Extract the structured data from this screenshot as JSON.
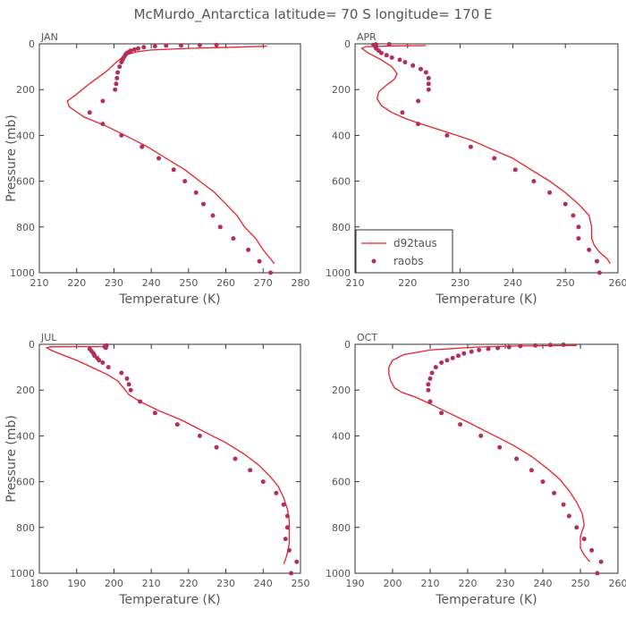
{
  "figure": {
    "title": "McMurdo_Antarctica  latitude= 70 S longitude= 170 E"
  },
  "colors": {
    "model_line": "#e8202a",
    "obs_marker": "#b0305a",
    "axis": "#333333",
    "text": "#555555"
  },
  "chart_data": [
    {
      "type": "line",
      "panel_label": "JAN",
      "xlabel": "Temperature (K)",
      "ylabel": "Pressure (mb)",
      "xlim": [
        210,
        280
      ],
      "ylim": [
        1000,
        0
      ],
      "xticks": [
        210,
        220,
        230,
        240,
        250,
        260,
        270,
        280
      ],
      "yticks": [
        0,
        200,
        400,
        600,
        800,
        1000
      ],
      "legend": null,
      "series": [
        {
          "name": "d92taus",
          "style": "line",
          "points": [
            [
              271,
              10
            ],
            [
              262,
              15
            ],
            [
              250,
              20
            ],
            [
              240,
              27
            ],
            [
              236,
              35
            ],
            [
              233,
              50
            ],
            [
              231,
              75
            ],
            [
              228,
              120
            ],
            [
              223,
              180
            ],
            [
              220,
              220
            ],
            [
              217.5,
              250
            ],
            [
              218,
              275
            ],
            [
              222,
              320
            ],
            [
              228,
              360
            ],
            [
              233,
              400
            ],
            [
              239,
              450
            ],
            [
              244,
              500
            ],
            [
              249,
              550
            ],
            [
              253,
              600
            ],
            [
              257,
              650
            ],
            [
              260,
              700
            ],
            [
              263,
              750
            ],
            [
              265,
              800
            ],
            [
              268,
              850
            ],
            [
              270,
              900
            ],
            [
              272,
              940
            ],
            [
              273,
              960
            ]
          ]
        },
        {
          "name": "raobs",
          "style": "markers",
          "points": [
            [
              257.5,
              5
            ],
            [
              253,
              6
            ],
            [
              248,
              7
            ],
            [
              244,
              8
            ],
            [
              241,
              10
            ],
            [
              238,
              15
            ],
            [
              236.5,
              20
            ],
            [
              235.5,
              25
            ],
            [
              234.5,
              30
            ],
            [
              234,
              35
            ],
            [
              233.5,
              40
            ],
            [
              233.2,
              45
            ],
            [
              233,
              50
            ],
            [
              232.6,
              60
            ],
            [
              232.3,
              70
            ],
            [
              232,
              80
            ],
            [
              231.5,
              100
            ],
            [
              231,
              125
            ],
            [
              230.8,
              150
            ],
            [
              230.6,
              175
            ],
            [
              230.3,
              200
            ],
            [
              227,
              250
            ],
            [
              223.5,
              300
            ],
            [
              227,
              350
            ],
            [
              232,
              400
            ],
            [
              237.5,
              450
            ],
            [
              242,
              500
            ],
            [
              246,
              550
            ],
            [
              249,
              600
            ],
            [
              252,
              650
            ],
            [
              254,
              700
            ],
            [
              256.5,
              750
            ],
            [
              258.5,
              800
            ],
            [
              262,
              850
            ],
            [
              266,
              900
            ],
            [
              269,
              950
            ],
            [
              272,
              1000
            ]
          ]
        }
      ]
    },
    {
      "type": "line",
      "panel_label": "APR",
      "xlabel": "Temperature (K)",
      "ylabel": "",
      "xlim": [
        210,
        260
      ],
      "ylim": [
        1000,
        0
      ],
      "xticks": [
        210,
        220,
        230,
        240,
        250,
        260
      ],
      "yticks": [
        0,
        200,
        400,
        600,
        800,
        1000
      ],
      "legend": {
        "placement": "bottom-left",
        "entries": [
          "d92taus",
          "raobs"
        ]
      },
      "series": [
        {
          "name": "d92taus",
          "style": "line",
          "points": [
            [
              223.5,
              8
            ],
            [
              218,
              9
            ],
            [
              212,
              12
            ],
            [
              211.3,
              20
            ],
            [
              212.5,
              40
            ],
            [
              215,
              70
            ],
            [
              217,
              100
            ],
            [
              218,
              130
            ],
            [
              217.5,
              155
            ],
            [
              216,
              180
            ],
            [
              214.5,
              210
            ],
            [
              214.2,
              240
            ],
            [
              215,
              270
            ],
            [
              217,
              300
            ],
            [
              220,
              330
            ],
            [
              224,
              360
            ],
            [
              228,
              390
            ],
            [
              232,
              420
            ],
            [
              236,
              460
            ],
            [
              240,
              500
            ],
            [
              243.5,
              550
            ],
            [
              247,
              600
            ],
            [
              250,
              650
            ],
            [
              252.5,
              700
            ],
            [
              254.5,
              750
            ],
            [
              255,
              800
            ],
            [
              255,
              850
            ],
            [
              255.5,
              880
            ],
            [
              256.5,
              910
            ],
            [
              258,
              940
            ],
            [
              258.5,
              960
            ]
          ]
        },
        {
          "name": "raobs",
          "style": "markers",
          "points": [
            [
              216.5,
              2
            ],
            [
              214,
              3
            ],
            [
              213.5,
              5
            ],
            [
              213.8,
              10
            ],
            [
              214,
              15
            ],
            [
              214,
              20
            ],
            [
              214.5,
              30
            ],
            [
              215,
              40
            ],
            [
              216,
              50
            ],
            [
              217,
              60
            ],
            [
              218.5,
              70
            ],
            [
              219.5,
              80
            ],
            [
              221,
              95
            ],
            [
              222.5,
              110
            ],
            [
              223.5,
              125
            ],
            [
              224,
              150
            ],
            [
              224,
              175
            ],
            [
              224,
              200
            ],
            [
              222,
              250
            ],
            [
              219,
              300
            ],
            [
              222,
              350
            ],
            [
              227.5,
              400
            ],
            [
              232,
              450
            ],
            [
              236.5,
              500
            ],
            [
              240.5,
              550
            ],
            [
              244,
              600
            ],
            [
              247,
              650
            ],
            [
              250,
              700
            ],
            [
              251.5,
              750
            ],
            [
              252.5,
              800
            ],
            [
              252.5,
              850
            ],
            [
              254.5,
              900
            ],
            [
              256,
              950
            ],
            [
              256.5,
              1000
            ]
          ]
        }
      ]
    },
    {
      "type": "line",
      "panel_label": "JUL",
      "xlabel": "Temperature (K)",
      "ylabel": "Pressure (mb)",
      "xlim": [
        180,
        250
      ],
      "ylim": [
        1000,
        0
      ],
      "xticks": [
        180,
        190,
        200,
        210,
        220,
        230,
        240,
        250
      ],
      "yticks": [
        0,
        200,
        400,
        600,
        800,
        1000
      ],
      "legend": null,
      "series": [
        {
          "name": "d92taus",
          "style": "line",
          "points": [
            [
              197,
              10
            ],
            [
              190,
              10
            ],
            [
              183,
              11
            ],
            [
              182,
              15
            ],
            [
              183,
              25
            ],
            [
              186,
              45
            ],
            [
              190,
              70
            ],
            [
              194,
              100
            ],
            [
              198,
              130
            ],
            [
              201,
              160
            ],
            [
              202.5,
              190
            ],
            [
              204,
              220
            ],
            [
              207,
              250
            ],
            [
              212,
              290
            ],
            [
              218,
              330
            ],
            [
              224,
              380
            ],
            [
              230,
              430
            ],
            [
              235,
              480
            ],
            [
              239,
              530
            ],
            [
              242,
              580
            ],
            [
              244,
              620
            ],
            [
              245.5,
              670
            ],
            [
              246.5,
              720
            ],
            [
              247,
              770
            ],
            [
              247,
              820
            ],
            [
              247,
              870
            ],
            [
              246.5,
              910
            ],
            [
              246,
              940
            ],
            [
              245.5,
              960
            ]
          ]
        },
        {
          "name": "raobs",
          "style": "markers",
          "points": [
            [
              198,
              5
            ],
            [
              197.5,
              10
            ],
            [
              197.8,
              15
            ],
            [
              193.5,
              20
            ],
            [
              194,
              30
            ],
            [
              194.5,
              40
            ],
            [
              194.8,
              50
            ],
            [
              195.5,
              60
            ],
            [
              196,
              70
            ],
            [
              197,
              80
            ],
            [
              198.5,
              100
            ],
            [
              202,
              125
            ],
            [
              203.5,
              150
            ],
            [
              204,
              175
            ],
            [
              204.5,
              200
            ],
            [
              207,
              250
            ],
            [
              211,
              300
            ],
            [
              217,
              350
            ],
            [
              223,
              400
            ],
            [
              227.5,
              450
            ],
            [
              232.5,
              500
            ],
            [
              236.5,
              550
            ],
            [
              240,
              600
            ],
            [
              243.5,
              650
            ],
            [
              245.5,
              700
            ],
            [
              246.5,
              750
            ],
            [
              246.5,
              800
            ],
            [
              246,
              850
            ],
            [
              247,
              900
            ],
            [
              249,
              950
            ],
            [
              247.5,
              1000
            ]
          ]
        }
      ]
    },
    {
      "type": "line",
      "panel_label": "OCT",
      "xlabel": "Temperature (K)",
      "ylabel": "",
      "xlim": [
        190,
        260
      ],
      "ylim": [
        1000,
        0
      ],
      "xticks": [
        190,
        200,
        210,
        220,
        230,
        240,
        250,
        260
      ],
      "yticks": [
        0,
        200,
        400,
        600,
        800,
        1000
      ],
      "legend": null,
      "series": [
        {
          "name": "d92taus",
          "style": "line",
          "points": [
            [
              249,
              5
            ],
            [
              242,
              6
            ],
            [
              232,
              8
            ],
            [
              222,
              12
            ],
            [
              210,
              25
            ],
            [
              203,
              45
            ],
            [
              200,
              70
            ],
            [
              199,
              100
            ],
            [
              199,
              130
            ],
            [
              199.5,
              160
            ],
            [
              200.5,
              190
            ],
            [
              202.5,
              210
            ],
            [
              206,
              230
            ],
            [
              210,
              260
            ],
            [
              215,
              300
            ],
            [
              220,
              340
            ],
            [
              226,
              390
            ],
            [
              232,
              440
            ],
            [
              237,
              490
            ],
            [
              241,
              540
            ],
            [
              244.5,
              590
            ],
            [
              247,
              640
            ],
            [
              249,
              690
            ],
            [
              250.5,
              740
            ],
            [
              251,
              790
            ],
            [
              250,
              840
            ],
            [
              250,
              890
            ],
            [
              251,
              920
            ],
            [
              252.5,
              950
            ]
          ]
        },
        {
          "name": "raobs",
          "style": "markers",
          "points": [
            [
              245.5,
              2
            ],
            [
              242,
              3
            ],
            [
              238,
              5
            ],
            [
              234,
              8
            ],
            [
              231,
              12
            ],
            [
              228,
              16
            ],
            [
              225.5,
              20
            ],
            [
              223,
              25
            ],
            [
              221,
              32
            ],
            [
              219,
              40
            ],
            [
              217.5,
              50
            ],
            [
              216,
              60
            ],
            [
              214.5,
              70
            ],
            [
              213,
              80
            ],
            [
              211.5,
              100
            ],
            [
              210.5,
              125
            ],
            [
              210,
              150
            ],
            [
              209.5,
              175
            ],
            [
              209.5,
              200
            ],
            [
              210,
              250
            ],
            [
              213,
              300
            ],
            [
              218,
              350
            ],
            [
              223.5,
              400
            ],
            [
              228.5,
              450
            ],
            [
              233,
              500
            ],
            [
              237,
              550
            ],
            [
              240,
              600
            ],
            [
              243,
              650
            ],
            [
              245.5,
              700
            ],
            [
              247,
              750
            ],
            [
              249,
              800
            ],
            [
              251,
              850
            ],
            [
              253,
              900
            ],
            [
              255.5,
              950
            ],
            [
              254.5,
              1000
            ]
          ]
        }
      ]
    }
  ]
}
